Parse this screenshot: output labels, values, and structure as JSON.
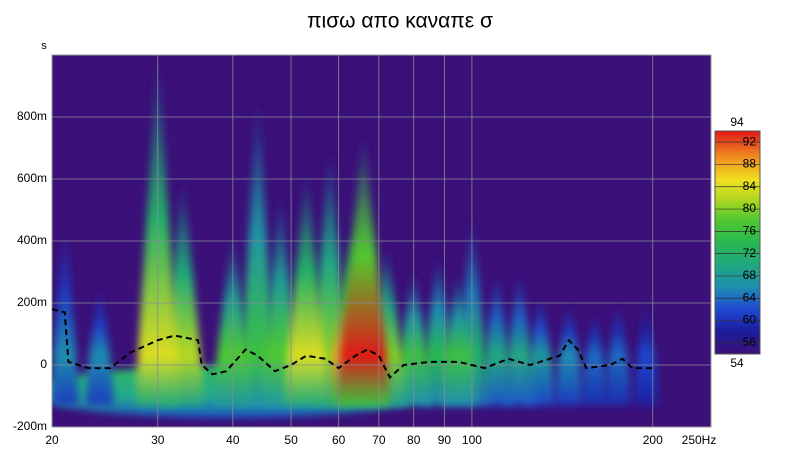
{
  "chart_data": {
    "type": "spectrogram",
    "title": "πισω απο καναπε σ",
    "y_label": "s",
    "xlog": true,
    "xlim": [
      20,
      250
    ],
    "xticks": [
      20,
      30,
      40,
      50,
      60,
      70,
      80,
      90,
      100,
      200,
      {
        "value": 250,
        "label": "250Hz"
      }
    ],
    "ylim": [
      -0.2,
      1.0
    ],
    "yticks": [
      {
        "value": 0.8,
        "label": "800m"
      },
      {
        "value": 0.6,
        "label": "600m"
      },
      {
        "value": 0.4,
        "label": "400m"
      },
      {
        "value": 0.2,
        "label": "200m"
      },
      0,
      {
        "value": -0.2,
        "label": "-200m"
      }
    ],
    "grid": true,
    "background": "#3b1078",
    "zlim": [
      54,
      94
    ],
    "zticks": [
      56,
      60,
      64,
      68,
      72,
      76,
      80,
      84,
      88,
      92
    ],
    "peaks": {
      "freq": [
        21,
        24,
        30,
        33,
        40,
        44,
        48,
        53,
        58,
        63,
        66,
        72,
        80,
        88,
        95,
        100,
        110,
        120,
        130,
        145,
        160,
        175,
        195
      ],
      "decay": [
        0.45,
        0.25,
        1.0,
        0.6,
        0.42,
        0.87,
        0.55,
        0.63,
        0.7,
        0.45,
        0.75,
        0.38,
        0.3,
        0.35,
        0.3,
        0.47,
        0.3,
        0.3,
        0.22,
        0.2,
        0.17,
        0.2,
        0.2
      ],
      "level": [
        66,
        66,
        84,
        82,
        78,
        76,
        78,
        84,
        80,
        88,
        94,
        80,
        76,
        74,
        76,
        72,
        70,
        70,
        68,
        66,
        64,
        64,
        62
      ]
    },
    "line": {
      "x": [
        20,
        21,
        21.3,
        23,
        25,
        27,
        30,
        32,
        35,
        35.5,
        37,
        39,
        42,
        44,
        47,
        50,
        53,
        57,
        60,
        64,
        67,
        70,
        73,
        77,
        85,
        95,
        105,
        115,
        125,
        140,
        145,
        150,
        155,
        170,
        178,
        185,
        200
      ],
      "values": [
        0.18,
        0.17,
        0.01,
        -0.01,
        -0.01,
        0.04,
        0.08,
        0.095,
        0.08,
        0.0,
        -0.03,
        -0.02,
        0.05,
        0.03,
        -0.02,
        0.0,
        0.03,
        0.02,
        -0.01,
        0.03,
        0.05,
        0.03,
        -0.04,
        0.0,
        0.01,
        0.01,
        -0.01,
        0.02,
        0.0,
        0.03,
        0.08,
        0.05,
        -0.01,
        0.0,
        0.02,
        -0.01,
        -0.01
      ],
      "color": "#000000"
    }
  }
}
